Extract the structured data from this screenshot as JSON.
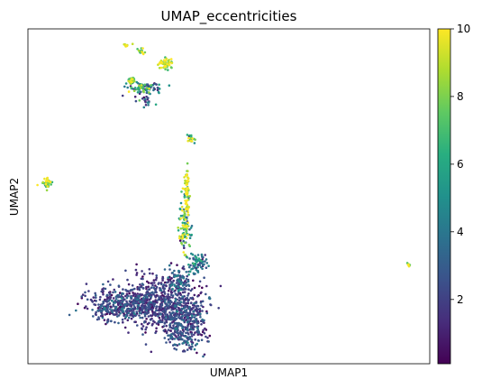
{
  "chart_data": {
    "type": "scatter",
    "title": "UMAP_eccentricities",
    "xlabel": "UMAP1",
    "ylabel": "UMAP2",
    "xticks": false,
    "yticks": false,
    "colormap": "viridis",
    "colorbar": {
      "min": 0.1,
      "max": 10,
      "ticks": [
        2,
        4,
        6,
        8,
        10
      ],
      "tick_labels": [
        "2",
        "4",
        "6",
        "8",
        "10"
      ]
    },
    "xlim": [
      0,
      100
    ],
    "ylim": [
      0,
      100
    ],
    "clusters": [
      {
        "id": "top-small-1",
        "cx": 24.5,
        "cy": 95.3,
        "sx": 0.4,
        "sy": 0.5,
        "n": 12,
        "value": 9.5,
        "spread": 0.5
      },
      {
        "id": "top-small-2",
        "cx": 28.2,
        "cy": 93.3,
        "sx": 0.5,
        "sy": 0.4,
        "n": 16,
        "value": 7,
        "spread": 2
      },
      {
        "id": "top-right-blob",
        "cx": 34.0,
        "cy": 89.4,
        "sx": 1.0,
        "sy": 0.9,
        "n": 55,
        "value": 9,
        "spread": 1.5
      },
      {
        "id": "top-cluster-a",
        "cx": 26.0,
        "cy": 84.5,
        "sx": 0.6,
        "sy": 0.5,
        "n": 30,
        "value": 8,
        "spread": 2
      },
      {
        "id": "top-cluster-b",
        "cx": 29.0,
        "cy": 82.5,
        "sx": 2.0,
        "sy": 0.7,
        "n": 90,
        "value": 4.5,
        "spread": 3
      },
      {
        "id": "top-cluster-tail",
        "cx": 29.5,
        "cy": 78.5,
        "sx": 1.2,
        "sy": 1.2,
        "n": 20,
        "value": 3,
        "spread": 1.5
      },
      {
        "id": "mid-small",
        "cx": 40.6,
        "cy": 67.0,
        "sx": 0.5,
        "sy": 0.6,
        "n": 22,
        "value": 6,
        "spread": 3
      },
      {
        "id": "left-small",
        "cx": 4.8,
        "cy": 53.7,
        "sx": 0.6,
        "sy": 1.0,
        "n": 40,
        "value": 8.5,
        "spread": 2
      },
      {
        "id": "far-right-dot",
        "cx": 94.8,
        "cy": 29.5,
        "sx": 0.3,
        "sy": 0.25,
        "n": 8,
        "value": 9,
        "spread": 1
      },
      {
        "id": "stem-top",
        "cx": 39.5,
        "cy": 52.0,
        "sx": 0.4,
        "sy": 3.5,
        "n": 60,
        "value": 9,
        "spread": 1.5
      },
      {
        "id": "stem-mid",
        "cx": 39.2,
        "cy": 41.0,
        "sx": 0.7,
        "sy": 4.0,
        "n": 110,
        "value": 7,
        "spread": 3
      },
      {
        "id": "stem-right-arm",
        "cx": 42.0,
        "cy": 30.0,
        "sx": 1.2,
        "sy": 1.6,
        "n": 70,
        "value": 3.5,
        "spread": 1.5
      },
      {
        "id": "bottom-left-lobe",
        "cx": 23.5,
        "cy": 17.5,
        "sx": 4.5,
        "sy": 2.6,
        "n": 420,
        "value": 2,
        "spread": 1
      },
      {
        "id": "bottom-center-mass",
        "cx": 33.0,
        "cy": 18.5,
        "sx": 4.5,
        "sy": 4.0,
        "n": 520,
        "value": 1.6,
        "spread": 0.8
      },
      {
        "id": "bottom-right-lobe",
        "cx": 39.0,
        "cy": 11.5,
        "sx": 2.8,
        "sy": 4.2,
        "n": 380,
        "value": 2.1,
        "spread": 1
      },
      {
        "id": "bottom-neck",
        "cx": 37.5,
        "cy": 24.5,
        "sx": 1.6,
        "sy": 2.2,
        "n": 110,
        "value": 2.4,
        "spread": 1.2
      }
    ]
  }
}
